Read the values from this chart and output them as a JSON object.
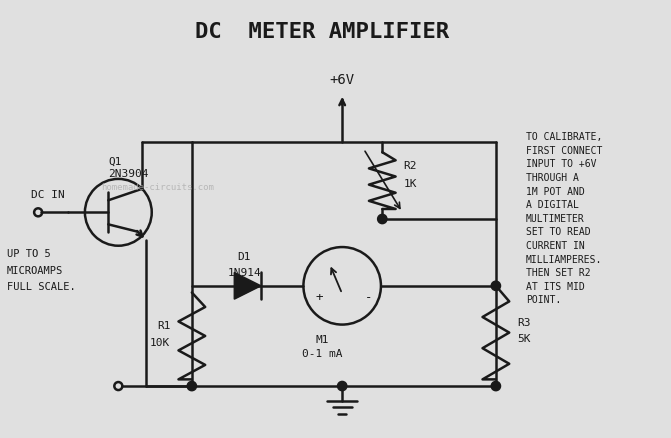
{
  "title": "DC  METER AMPLIFIER",
  "bg_color": "#e0e0e0",
  "line_color": "#1a1a1a",
  "text_color": "#1a1a1a",
  "watermark": "homemade-circuits.com",
  "watermark_color": "#aaaaaa",
  "q1": "Q1",
  "q1_part": "2N3904",
  "dc_in": "DC IN",
  "up_to": "UP TO 5",
  "microamps": "MICROAMPS",
  "full_scale": "FULL SCALE.",
  "r1": "R1",
  "r1_val": "10K",
  "r2": "R2",
  "r2_val": "1K",
  "d1": "D1",
  "d1_val": "1N914",
  "m1": "M1",
  "m1_val": "0-1 mA",
  "r3": "R3",
  "r3_val": "5K",
  "vcc": "+6V",
  "calibrate": "TO CALIBRATE,\nFIRST CONNECT\nINPUT TO +6V\nTHROUGH A\n1M POT AND\nA DIGITAL\nMULTIMETER\nSET TO READ\nCURRENT IN\nMILLIAMPERES.\nTHEN SET R2\nAT ITS MID\nPOINT."
}
